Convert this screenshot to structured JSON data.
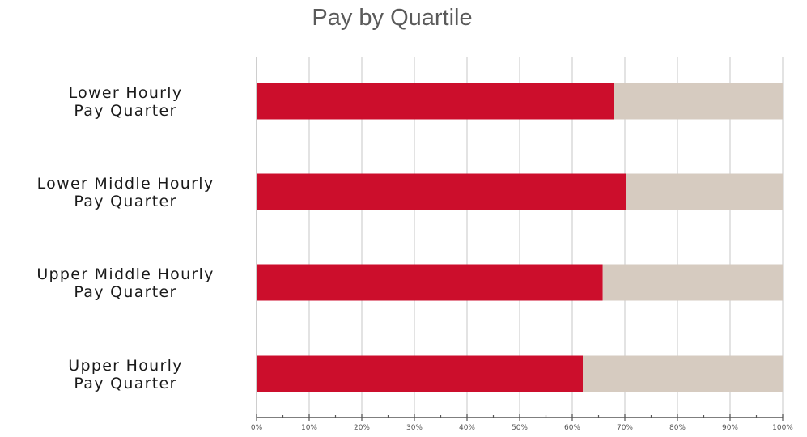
{
  "chart_data": {
    "type": "bar",
    "orientation": "horizontal",
    "stacked": true,
    "title": "Pay by Quartile",
    "categories": [
      [
        "Lower Hourly",
        "Pay Quarter"
      ],
      [
        "Lower Middle Hourly",
        "Pay Quarter"
      ],
      [
        "Upper Middle Hourly",
        "Pay Quarter"
      ],
      [
        "Upper Hourly",
        "Pay Quarter"
      ]
    ],
    "series": [
      {
        "color": "#cc0e2c",
        "values": [
          68,
          70.2,
          65.8,
          62
        ]
      },
      {
        "color": "#d6cbc0",
        "values": [
          32,
          29.8,
          34.2,
          38
        ]
      }
    ],
    "xlim": [
      0,
      100
    ],
    "xticks": [
      "0%",
      "10%",
      "20%",
      "30%",
      "40%",
      "50%",
      "60%",
      "70%",
      "80%",
      "90%",
      "100%"
    ],
    "grid": "vertical",
    "legend": "none"
  }
}
